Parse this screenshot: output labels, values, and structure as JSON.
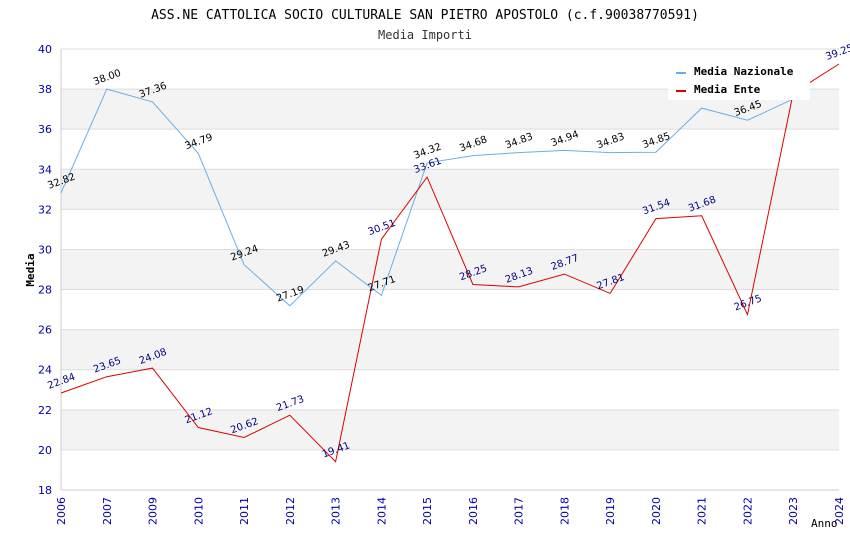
{
  "chart_data": {
    "type": "line",
    "title": "ASS.NE CATTOLICA SOCIO CULTURALE SAN PIETRO APOSTOLO (c.f.90038770591)",
    "subtitle": "Media Importi",
    "xlabel": "Anno",
    "ylabel": "Media",
    "ylim": [
      18,
      40
    ],
    "yticks": [
      18,
      20,
      22,
      24,
      26,
      28,
      30,
      32,
      34,
      36,
      38,
      40
    ],
    "categories": [
      "2006",
      "2007",
      "2009",
      "2010",
      "2011",
      "2012",
      "2013",
      "2014",
      "2015",
      "2016",
      "2017",
      "2018",
      "2019",
      "2020",
      "2021",
      "2022",
      "2023",
      "2024"
    ],
    "grid": true,
    "legend_position": "top-right",
    "series": [
      {
        "name": "Media Nazionale",
        "color": "#6aaee8",
        "label_color": "#000000",
        "values": [
          32.82,
          38.0,
          37.36,
          34.79,
          29.24,
          27.19,
          29.43,
          27.71,
          34.32,
          34.68,
          34.83,
          34.94,
          34.83,
          34.85,
          37.05,
          36.45,
          37.5,
          null
        ],
        "labels": [
          "32.82",
          "38.00",
          "37.36",
          "34.79",
          "29.24",
          "27.19",
          "29.43",
          "27.71",
          "34.32",
          "34.68",
          "34.83",
          "34.94",
          "34.83",
          "34.85",
          "",
          "36.45",
          "",
          ""
        ]
      },
      {
        "name": "Media Ente",
        "color": "#dd0000",
        "label_color": "#000080",
        "values": [
          22.84,
          23.65,
          24.08,
          21.12,
          20.62,
          21.73,
          19.41,
          30.51,
          33.61,
          28.25,
          28.13,
          28.77,
          27.81,
          31.54,
          31.68,
          26.75,
          37.8,
          39.25
        ],
        "labels": [
          "22.84",
          "23.65",
          "24.08",
          "21.12",
          "20.62",
          "21.73",
          "19.41",
          "30.51",
          "33.61",
          "28.25",
          "28.13",
          "28.77",
          "27.81",
          "31.54",
          "31.68",
          "26.75",
          "",
          "39.25"
        ]
      }
    ]
  }
}
